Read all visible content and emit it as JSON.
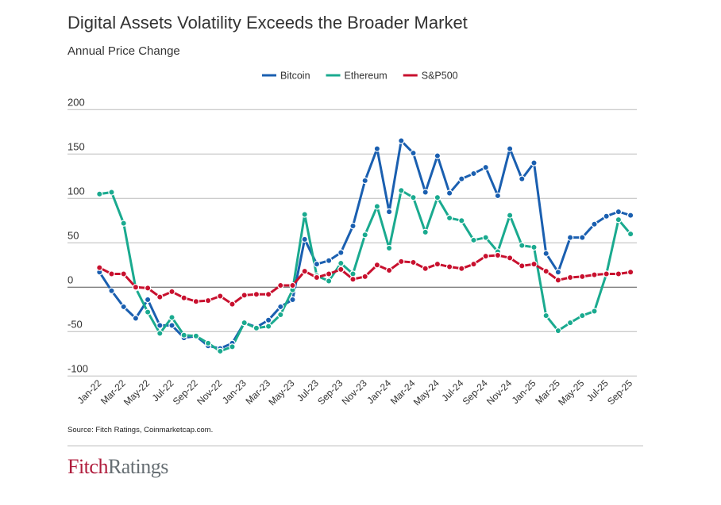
{
  "chart_data": {
    "type": "line",
    "title": "Digital Assets Volatility Exceeds the Broader Market",
    "subtitle": "Annual Price Change",
    "source": "Source: Fitch Ratings, Coinmarketcap.com.",
    "ylim": [
      -100,
      200
    ],
    "yticks": [
      200,
      150,
      100,
      50,
      0,
      -50,
      -100
    ],
    "grid": true,
    "legend_position": "top-center",
    "x": [
      "Jan-22",
      "Feb-22",
      "Mar-22",
      "Apr-22",
      "May-22",
      "Jun-22",
      "Jul-22",
      "Aug-22",
      "Sep-22",
      "Oct-22",
      "Nov-22",
      "Dec-22",
      "Jan-23",
      "Feb-23",
      "Mar-23",
      "Apr-23",
      "May-23",
      "Jun-23",
      "Jul-23",
      "Aug-23",
      "Sep-23",
      "Oct-23",
      "Nov-23",
      "Dec-23",
      "Jan-24",
      "Feb-24",
      "Mar-24",
      "Apr-24",
      "May-24",
      "Jun-24",
      "Jul-24",
      "Aug-24",
      "Sep-24",
      "Oct-24",
      "Nov-24",
      "Dec-24",
      "Jan-25",
      "Feb-25",
      "Mar-25",
      "Apr-25",
      "May-25",
      "Jun-25",
      "Jul-25",
      "Aug-25",
      "Sep-25"
    ],
    "xtick_labels": [
      "Jan-22",
      "Mar-22",
      "May-22",
      "Jul-22",
      "Sep-22",
      "Nov-22",
      "Jan-23",
      "Mar-23",
      "May-23",
      "Jul-23",
      "Sep-23",
      "Nov-23",
      "Jan-24",
      "Mar-24",
      "May-24",
      "Jul-24",
      "Sep-24",
      "Nov-24",
      "Jan-25",
      "Mar-25",
      "May-25",
      "Jul-25",
      "Sep-25"
    ],
    "series": [
      {
        "name": "Bitcoin",
        "color": "#1a5fb0",
        "values": [
          17,
          -4,
          -22,
          -35,
          -14,
          -43,
          -43,
          -57,
          -55,
          -66,
          -69,
          -63,
          -40,
          -45,
          -37,
          -22,
          -14,
          54,
          26,
          30,
          39,
          69,
          120,
          156,
          85,
          165,
          151,
          107,
          148,
          106,
          122,
          128,
          135,
          103,
          156,
          122,
          140,
          38,
          17,
          56,
          56,
          71,
          80,
          85,
          81
        ]
      },
      {
        "name": "Ethereum",
        "color": "#1aaa8f",
        "values": [
          105,
          107,
          72,
          -1,
          -28,
          -52,
          -34,
          -54,
          -55,
          -63,
          -72,
          -67,
          -40,
          -46,
          -44,
          -31,
          -3,
          82,
          13,
          7,
          27,
          15,
          59,
          91,
          44,
          109,
          101,
          62,
          101,
          78,
          75,
          53,
          56,
          40,
          81,
          47,
          45,
          -32,
          -49,
          -40,
          -32,
          -27,
          15,
          76,
          60
        ]
      },
      {
        "name": "S&P500",
        "color": "#c8102e",
        "values": [
          22,
          15,
          15,
          0,
          -1,
          -11,
          -5,
          -12,
          -16,
          -15,
          -10,
          -19,
          -9,
          -8,
          -8,
          2,
          2,
          18,
          11,
          15,
          20,
          9,
          12,
          25,
          19,
          29,
          28,
          21,
          26,
          23,
          21,
          26,
          35,
          36,
          33,
          24,
          26,
          18,
          8,
          11,
          12,
          14,
          15,
          15,
          17
        ]
      }
    ]
  },
  "logo": {
    "part1": "Fitch",
    "part2": "Ratings"
  }
}
